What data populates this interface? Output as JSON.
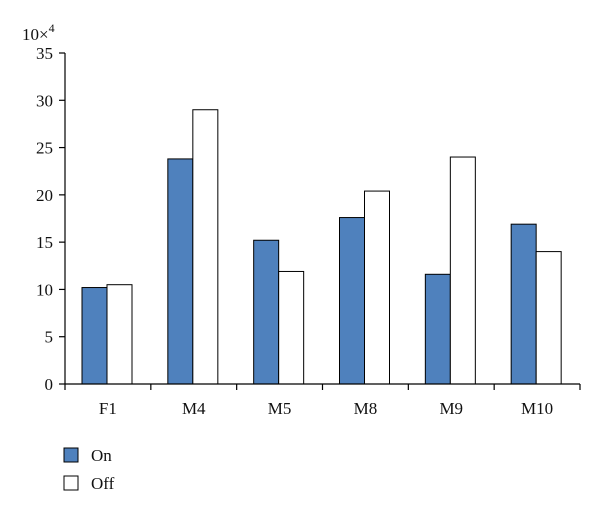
{
  "chart_data": {
    "type": "bar",
    "y_multiplier_label": "10×",
    "y_multiplier_exponent": "4",
    "categories": [
      "F1",
      "M4",
      "M5",
      "M8",
      "M9",
      "M10"
    ],
    "ylim": [
      0,
      35
    ],
    "yticks": [
      "0",
      "5",
      "10",
      "15",
      "20",
      "25",
      "30",
      "35"
    ],
    "series": [
      {
        "name": "On",
        "color": "#4f81bd",
        "values": [
          10.2,
          23.8,
          15.2,
          17.6,
          11.6,
          16.9
        ]
      },
      {
        "name": "Off",
        "color": "#ffffff",
        "values": [
          10.5,
          29.0,
          11.9,
          20.4,
          24.0,
          14.0
        ]
      }
    ],
    "legend_position": "bottom-left",
    "grid": false
  }
}
